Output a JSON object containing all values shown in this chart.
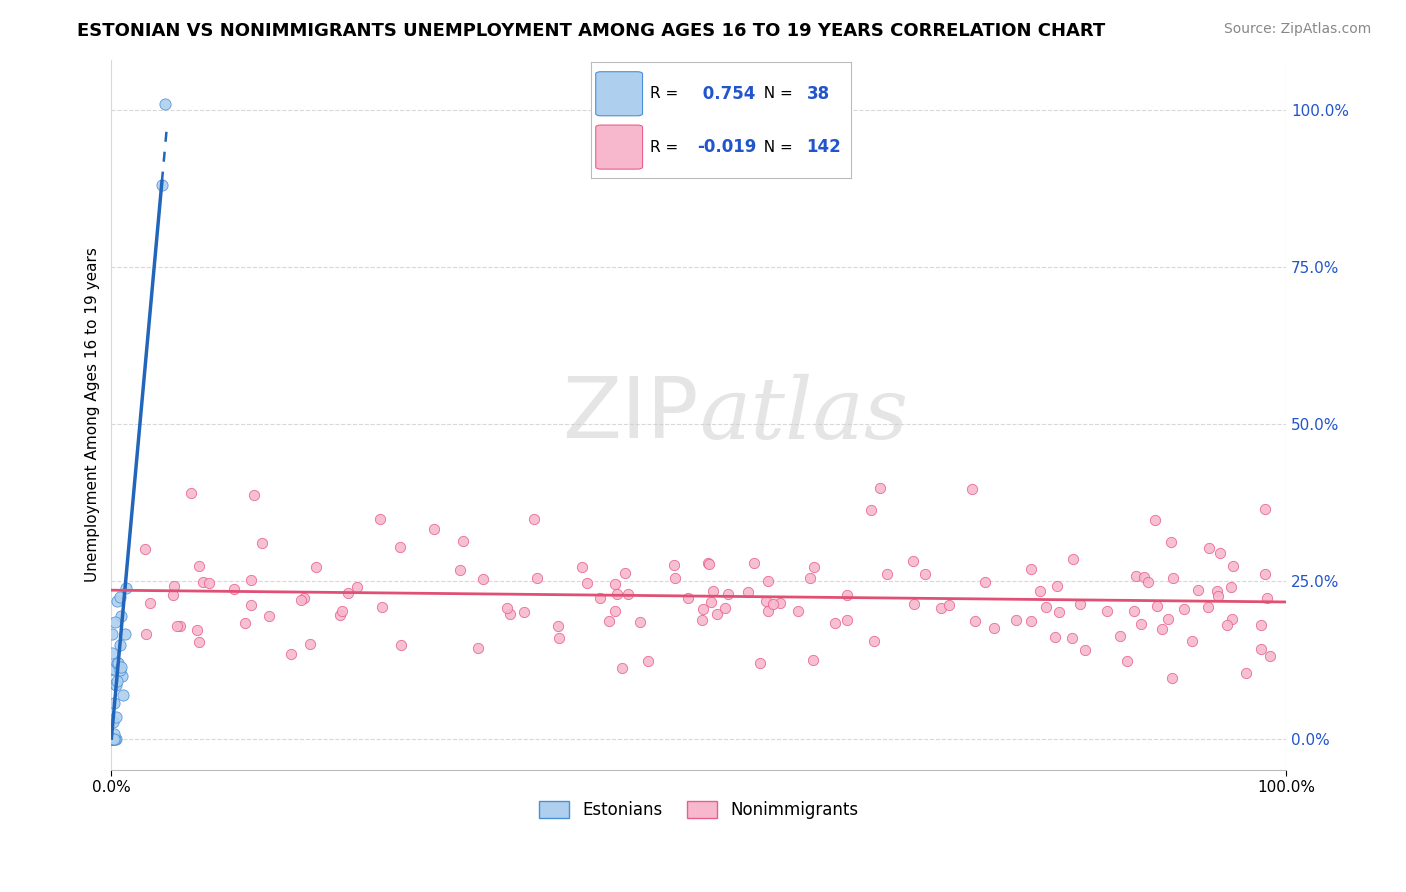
{
  "title": "ESTONIAN VS NONIMMIGRANTS UNEMPLOYMENT AMONG AGES 16 TO 19 YEARS CORRELATION CHART",
  "source": "Source: ZipAtlas.com",
  "ylabel": "Unemployment Among Ages 16 to 19 years",
  "right_ytick_labels": [
    "0.0%",
    "25.0%",
    "50.0%",
    "75.0%",
    "100.0%"
  ],
  "right_ytick_vals": [
    0.0,
    0.25,
    0.5,
    0.75,
    1.0
  ],
  "xlim": [
    0.0,
    1.0
  ],
  "ylim": [
    -0.05,
    1.08
  ],
  "xtick_labels": [
    "0.0%",
    "100.0%"
  ],
  "xtick_vals": [
    0.0,
    1.0
  ],
  "R_estonian": 0.754,
  "N_estonian": 38,
  "R_nonimmigrant": -0.019,
  "N_nonimmigrant": 142,
  "estonian_fill_color": "#aecfee",
  "estonian_edge_color": "#4a90d9",
  "nonimmigrant_fill_color": "#f7b8cd",
  "nonimmigrant_edge_color": "#e8608a",
  "estonian_line_color": "#2266bb",
  "nonimmigrant_line_color": "#e05075",
  "legend_text_color": "#2255cc",
  "background_color": "#ffffff",
  "grid_color": "#d8d8d8",
  "watermark_color": "#cccccc",
  "title_fontsize": 13,
  "source_fontsize": 10,
  "axis_label_fontsize": 11,
  "tick_fontsize": 11
}
